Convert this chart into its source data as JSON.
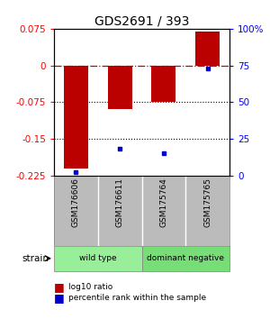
{
  "title": "GDS2691 / 393",
  "samples": [
    "GSM176606",
    "GSM176611",
    "GSM175764",
    "GSM175765"
  ],
  "log10_ratio": [
    -0.21,
    -0.09,
    -0.075,
    0.07
  ],
  "percentile_rank": [
    2.0,
    18.0,
    15.0,
    73.0
  ],
  "groups": [
    {
      "label": "wild type",
      "start": 0,
      "end": 2,
      "color": "#99ee99"
    },
    {
      "label": "dominant negative",
      "start": 2,
      "end": 4,
      "color": "#77dd77"
    }
  ],
  "ylim_left": [
    -0.225,
    0.075
  ],
  "ylim_right": [
    0,
    100
  ],
  "yticks_left": [
    0.075,
    0,
    -0.075,
    -0.15,
    -0.225
  ],
  "yticks_right": [
    100,
    75,
    50,
    25,
    0
  ],
  "ytick_labels_left": [
    "0.075",
    "0",
    "-0.075",
    "-0.15",
    "-0.225"
  ],
  "ytick_labels_right": [
    "100%",
    "75",
    "50",
    "25",
    "0"
  ],
  "bar_color": "#bb0000",
  "dot_color": "#0000cc",
  "zero_line_color": "#cc0000",
  "dotted_line_color": "#000000",
  "background_color": "#ffffff",
  "plot_bg": "#ffffff",
  "bar_width": 0.55,
  "legend_bar_label": "log10 ratio",
  "legend_dot_label": "percentile rank within the sample",
  "strain_label": "strain",
  "group_box_color": "#bbbbbb",
  "title_fontsize": 10,
  "tick_fontsize": 7.5
}
